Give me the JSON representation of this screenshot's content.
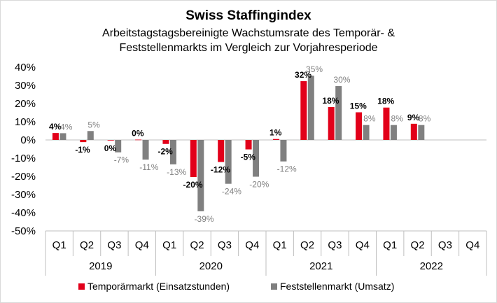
{
  "chart_data": {
    "type": "bar",
    "title": "Swiss Staffingindex",
    "subtitle_lines": [
      "Arbeitstagstagsbereinigte Wachstumsrate des Temporär- &",
      "Feststellenmarkts im Vergleich zur Vorjahresperiode"
    ],
    "categories": [
      "Q1",
      "Q2",
      "Q3",
      "Q4",
      "Q1",
      "Q2",
      "Q3",
      "Q4",
      "Q1",
      "Q2",
      "Q3",
      "Q4",
      "Q1",
      "Q2",
      "Q3",
      "Q4"
    ],
    "years": [
      "2019",
      "2020",
      "2021",
      "2022"
    ],
    "ylim": [
      -50,
      40
    ],
    "y_ticks": [
      40,
      30,
      20,
      10,
      0,
      -10,
      -20,
      -30,
      -40,
      -50
    ],
    "y_tick_labels": [
      "40%",
      "30%",
      "20%",
      "10%",
      "0%",
      "-10%",
      "-20%",
      "-30%",
      "-40%",
      "-50%"
    ],
    "legend_position": "bottom",
    "series": [
      {
        "name": "Temporärmarkt (Einsatzstunden)",
        "color": "#e2001a",
        "values": [
          3.8,
          -1.2,
          -0.3,
          0.2,
          -2.2,
          -20.4,
          -12.1,
          -5.2,
          0.5,
          32.3,
          18.1,
          15.2,
          17.8,
          8.9,
          null,
          null
        ],
        "labels": [
          "4%",
          "-1%",
          "0%",
          "0%",
          "-2%",
          "-20%",
          "-12%",
          "-5%",
          "1%",
          "32%",
          "18%",
          "15%",
          "18%",
          "9%",
          "",
          ""
        ]
      },
      {
        "name": "Feststellenmarkt (Umsatz)",
        "color": "#808080",
        "values": [
          3.7,
          4.9,
          -6.8,
          -10.8,
          -13.4,
          -39.2,
          -24.1,
          -20.2,
          -11.8,
          35.3,
          29.6,
          8.2,
          8.2,
          8.2,
          null,
          null
        ],
        "labels": [
          "4%",
          "5%",
          "-7%",
          "-11%",
          "-13%",
          "-39%",
          "-24%",
          "-20%",
          "-12%",
          "35%",
          "30%",
          "8%",
          "8%",
          "8%",
          "",
          ""
        ]
      }
    ]
  }
}
